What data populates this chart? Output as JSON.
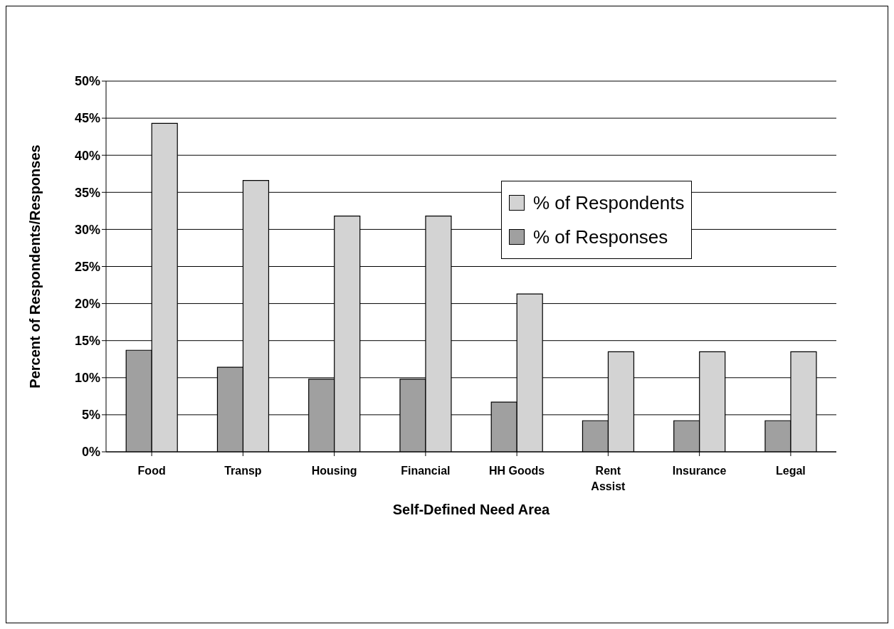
{
  "chart_data": {
    "type": "bar",
    "xlabel": "Self-Defined Need Area",
    "ylabel": "Percent of Respondents/Responses",
    "categories": [
      "Food",
      "Transp",
      "Housing",
      "Financial",
      "HH Goods",
      "Rent Assist",
      "Insurance",
      "Legal"
    ],
    "series": [
      {
        "name": "% of Responses",
        "color": "#a0a0a0",
        "values": [
          13.7,
          11.4,
          9.8,
          9.8,
          6.7,
          4.2,
          4.2,
          4.2
        ]
      },
      {
        "name": "% of Respondents",
        "color": "#d3d3d3",
        "values": [
          44.3,
          36.6,
          31.8,
          31.8,
          21.3,
          13.5,
          13.5,
          13.5
        ]
      }
    ],
    "ylim": [
      0,
      50
    ],
    "yticks": [
      {
        "value": 0,
        "label": "0%"
      },
      {
        "value": 5,
        "label": "5%"
      },
      {
        "value": 10,
        "label": "10%"
      },
      {
        "value": 15,
        "label": "15%"
      },
      {
        "value": 20,
        "label": "20%"
      },
      {
        "value": 25,
        "label": "25%"
      },
      {
        "value": 30,
        "label": "30%"
      },
      {
        "value": 35,
        "label": "35%"
      },
      {
        "value": 40,
        "label": "40%"
      },
      {
        "value": 45,
        "label": "45%"
      },
      {
        "value": 50,
        "label": "50%"
      }
    ],
    "grid": "y",
    "legend": "top right"
  }
}
